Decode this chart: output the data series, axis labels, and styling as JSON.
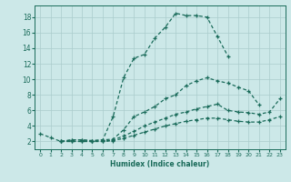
{
  "xlabel": "Humidex (Indice chaleur)",
  "bg_color": "#cce8e8",
  "grid_color": "#aacccc",
  "line_color": "#1a6b5a",
  "xlim": [
    -0.5,
    23.5
  ],
  "ylim": [
    1,
    19.5
  ],
  "xticks": [
    0,
    1,
    2,
    3,
    4,
    5,
    6,
    7,
    8,
    9,
    10,
    11,
    12,
    13,
    14,
    15,
    16,
    17,
    18,
    19,
    20,
    21,
    22,
    23
  ],
  "yticks": [
    2,
    4,
    6,
    8,
    10,
    12,
    14,
    16,
    18
  ],
  "line1_x": [
    0,
    1,
    2,
    3,
    4,
    5,
    6,
    7,
    8,
    9,
    10,
    11,
    12,
    13,
    14,
    15,
    16,
    17,
    18
  ],
  "line1_y": [
    3.0,
    2.5,
    2.0,
    2.2,
    2.2,
    2.1,
    2.2,
    5.2,
    10.2,
    12.7,
    13.2,
    15.3,
    16.7,
    18.5,
    18.2,
    18.2,
    18.0,
    15.5,
    13.0
  ],
  "line2_x": [
    2,
    3,
    4,
    5,
    6,
    7,
    8,
    9,
    10,
    11,
    12,
    13,
    14,
    15,
    16,
    17,
    18,
    19,
    20,
    21
  ],
  "line2_y": [
    2.0,
    2.2,
    2.2,
    2.1,
    2.2,
    2.3,
    3.5,
    5.2,
    5.8,
    6.5,
    7.5,
    8.0,
    9.2,
    9.8,
    10.2,
    9.8,
    9.5,
    9.0,
    8.5,
    6.7
  ],
  "line3_x": [
    2,
    3,
    4,
    5,
    6,
    7,
    8,
    9,
    10,
    11,
    12,
    13,
    14,
    15,
    16,
    17,
    18,
    19,
    20,
    21,
    22,
    23
  ],
  "line3_y": [
    2.0,
    2.0,
    2.0,
    2.0,
    2.0,
    2.2,
    2.7,
    3.3,
    4.0,
    4.5,
    5.0,
    5.5,
    5.8,
    6.2,
    6.5,
    6.8,
    6.0,
    5.8,
    5.7,
    5.5,
    5.8,
    7.5
  ],
  "line4_x": [
    2,
    3,
    4,
    5,
    6,
    7,
    8,
    9,
    10,
    11,
    12,
    13,
    14,
    15,
    16,
    17,
    18,
    19,
    20,
    21,
    22,
    23
  ],
  "line4_y": [
    2.0,
    2.0,
    2.0,
    2.0,
    2.0,
    2.1,
    2.4,
    2.8,
    3.2,
    3.6,
    4.0,
    4.3,
    4.6,
    4.8,
    5.0,
    5.0,
    4.8,
    4.6,
    4.5,
    4.5,
    4.8,
    5.2
  ]
}
